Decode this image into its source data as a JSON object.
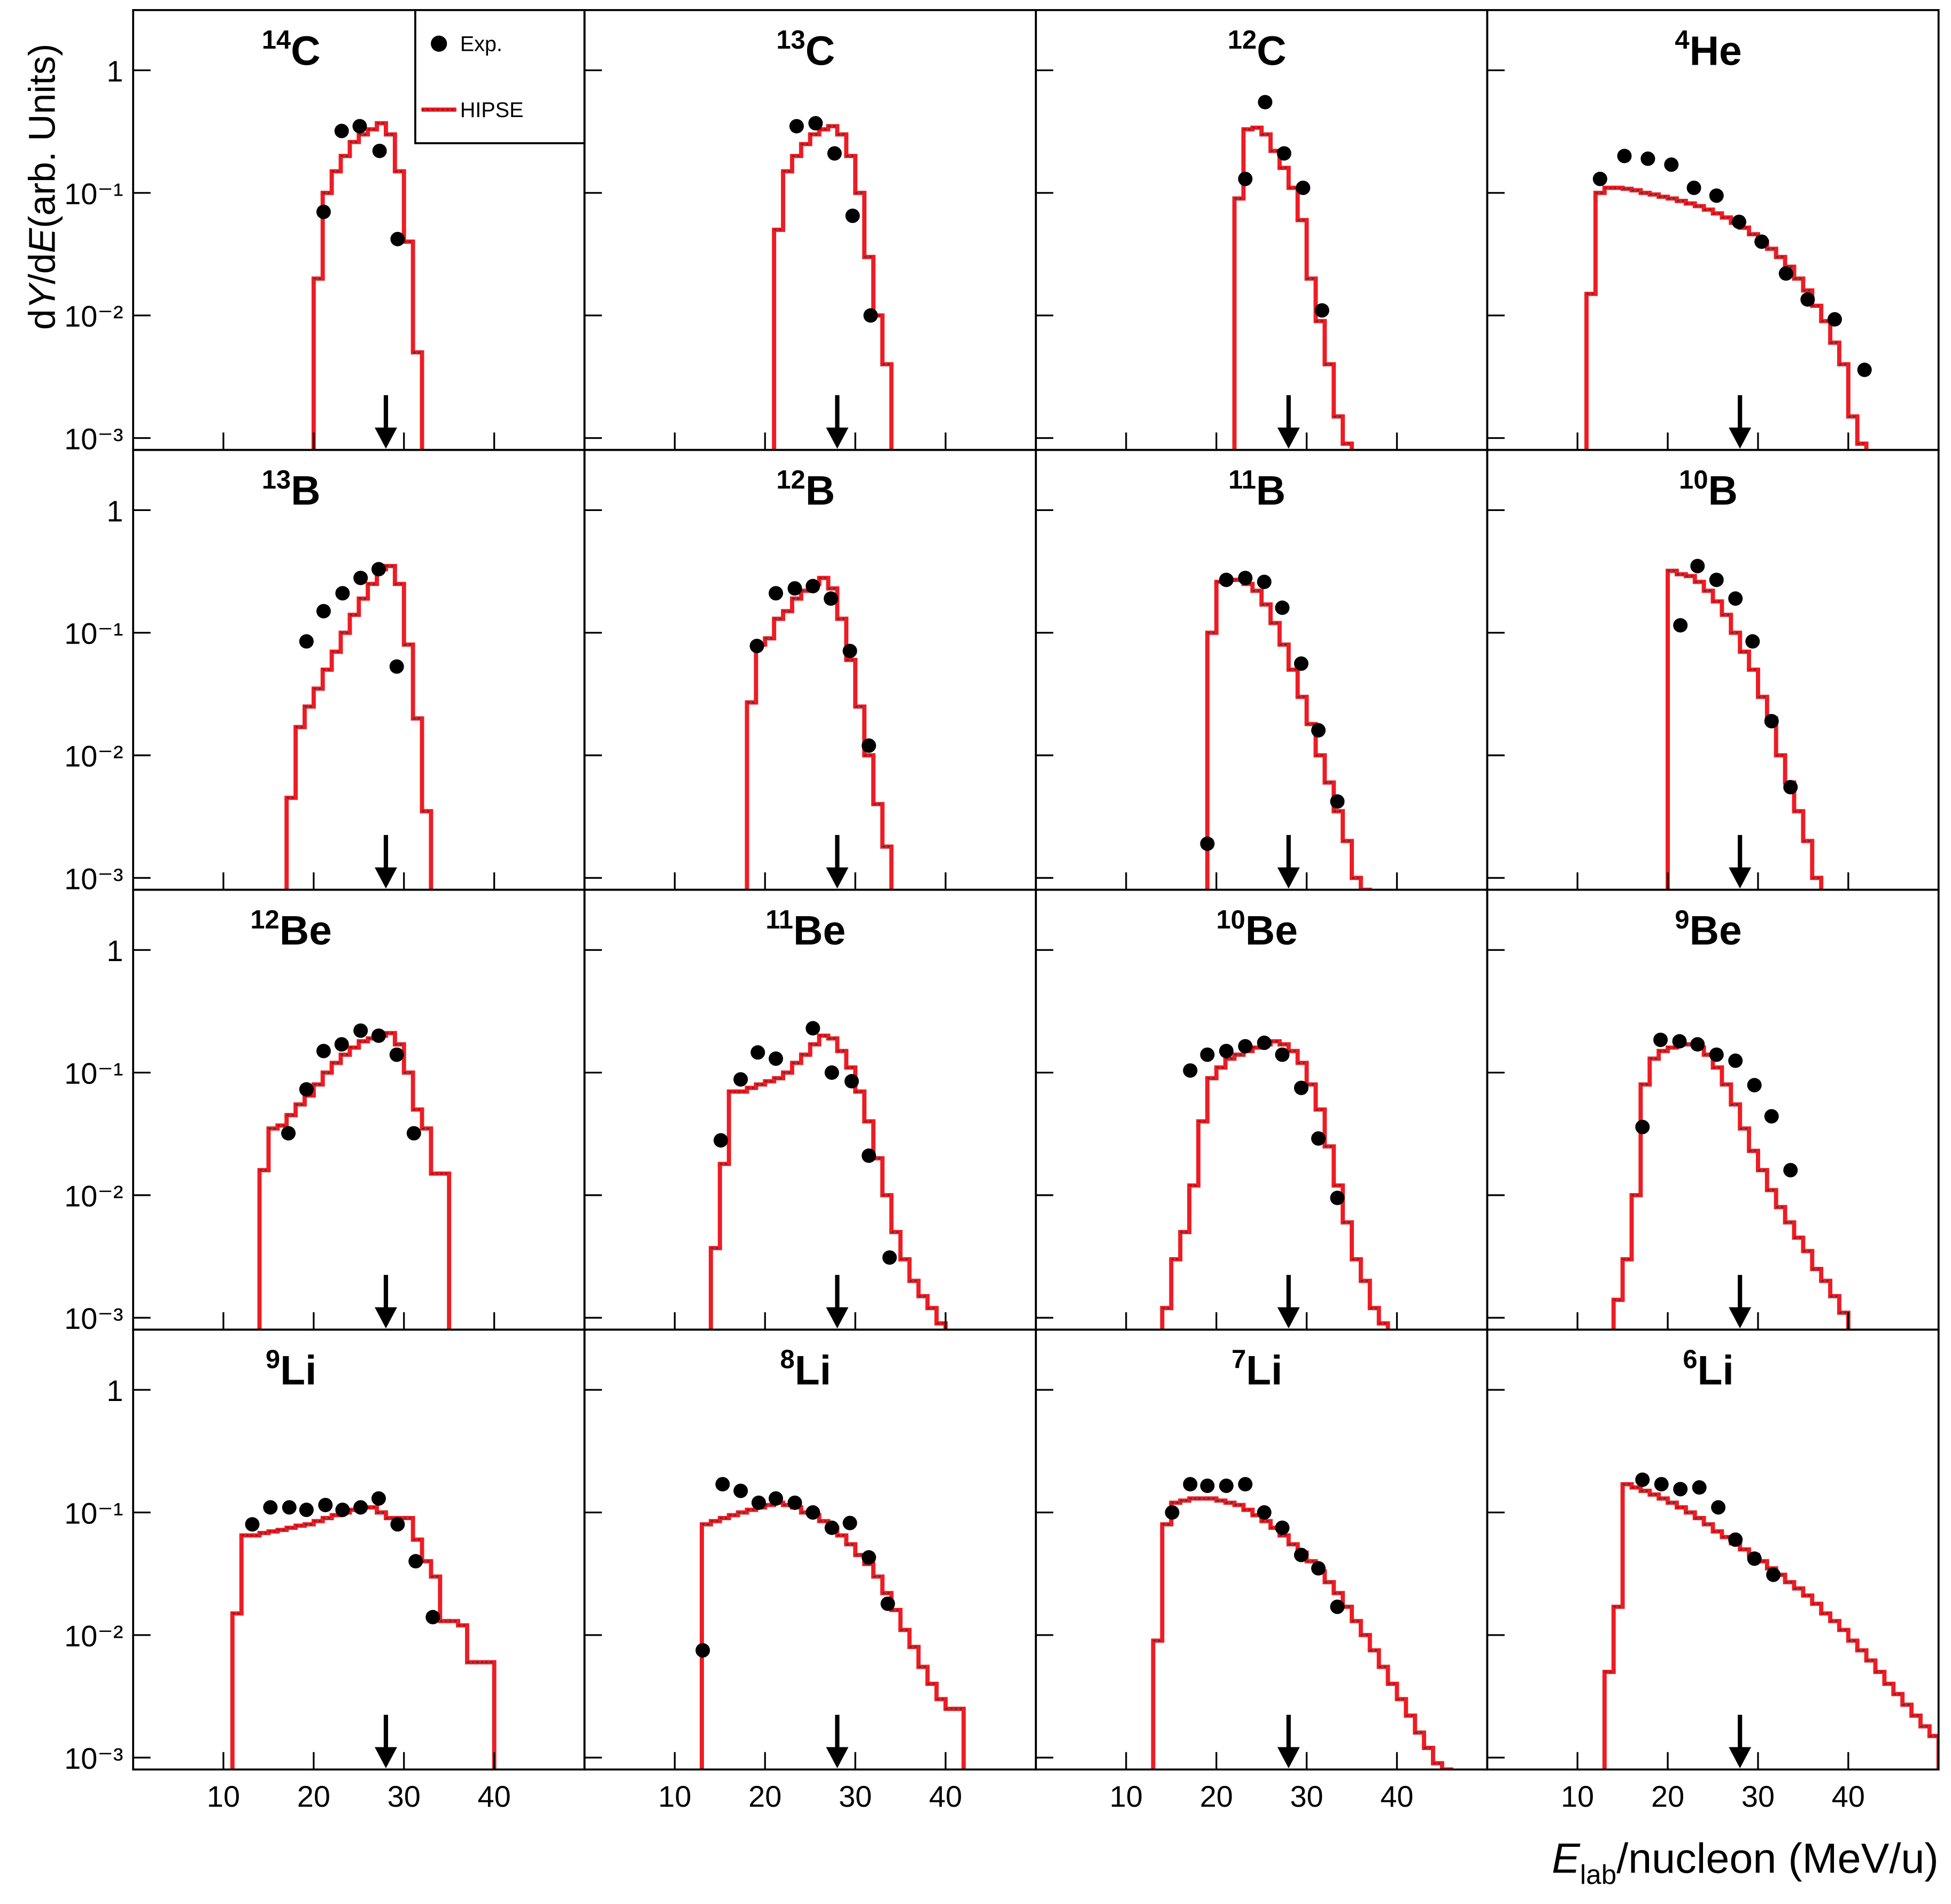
{
  "ylabel": {
    "d1": "d",
    "var1": "Y",
    "d2": "/d",
    "var2": "E",
    "rest": "(arb. Units)"
  },
  "xlabel": {
    "var": "E",
    "sub": "lab",
    "rest": "/nucleon (MeV/u)"
  },
  "axes": {
    "xlim": [
      0,
      50
    ],
    "ylim": [
      0.0008,
      3.1
    ],
    "log_y": true,
    "xticks": [
      10,
      20,
      30,
      40
    ],
    "yticks": [
      {
        "value": 0.001,
        "label": "10⁻³"
      },
      {
        "value": 0.01,
        "label": "10⁻²"
      },
      {
        "value": 0.1,
        "label": "10⁻¹"
      },
      1
    ]
  },
  "arrow_x": 28,
  "legend": {
    "corner": "upper right",
    "entries": [
      {
        "name": "Exp.",
        "kind": "points",
        "color": "#000000"
      },
      {
        "name": "HIPSE",
        "kind": "histogram",
        "color": "#ee1c24"
      }
    ]
  },
  "chart_data": [
    {
      "type": "histogram",
      "isotope": {
        "mass": "14",
        "symbol": "C"
      },
      "bins": [
        20,
        21,
        22,
        23,
        24,
        25,
        26,
        27,
        28,
        29,
        30,
        31,
        32
      ],
      "counts": [
        0.02,
        0.1,
        0.15,
        0.2,
        0.26,
        0.3,
        0.33,
        0.37,
        0.3,
        0.15,
        0.04,
        0.005
      ],
      "points": {
        "x": [
          21.1,
          23.1,
          25.1,
          27.3,
          29.3
        ],
        "y": [
          0.07,
          0.32,
          0.35,
          0.22,
          0.042
        ]
      }
    },
    {
      "type": "histogram",
      "isotope": {
        "mass": "13",
        "symbol": "C"
      },
      "bins": [
        21,
        22,
        23,
        24,
        25,
        26,
        27,
        28,
        29,
        30,
        31,
        32,
        33,
        34
      ],
      "counts": [
        0.05,
        0.15,
        0.2,
        0.25,
        0.3,
        0.33,
        0.35,
        0.3,
        0.2,
        0.1,
        0.03,
        0.01,
        0.004
      ],
      "points": {
        "x": [
          23.5,
          25.6,
          27.7,
          29.7,
          31.7
        ],
        "y": [
          0.35,
          0.37,
          0.21,
          0.065,
          0.01
        ]
      }
    },
    {
      "type": "histogram",
      "isotope": {
        "mass": "12",
        "symbol": "C"
      },
      "bins": [
        22,
        23,
        24,
        25,
        26,
        27,
        28,
        29,
        30,
        31,
        32,
        33,
        34,
        35
      ],
      "counts": [
        0.09,
        0.33,
        0.34,
        0.3,
        0.22,
        0.16,
        0.11,
        0.06,
        0.02,
        0.009,
        0.004,
        0.0015,
        0.0009
      ],
      "points": {
        "x": [
          23.2,
          25.4,
          27.5,
          29.6,
          31.7
        ],
        "y": [
          0.13,
          0.55,
          0.21,
          0.11,
          0.011
        ]
      }
    },
    {
      "type": "histogram",
      "isotope": {
        "mass": "4",
        "symbol": "He"
      },
      "bins": [
        11,
        12,
        13,
        14,
        15,
        16,
        17,
        18,
        19,
        20,
        21,
        22,
        23,
        24,
        25,
        26,
        27,
        28,
        29,
        30,
        31,
        32,
        33,
        34,
        35,
        36,
        37,
        38,
        39,
        40,
        41,
        42
      ],
      "counts": [
        0.015,
        0.1,
        0.11,
        0.11,
        0.108,
        0.105,
        0.1,
        0.097,
        0.093,
        0.09,
        0.086,
        0.082,
        0.078,
        0.073,
        0.068,
        0.063,
        0.057,
        0.052,
        0.046,
        0.04,
        0.035,
        0.03,
        0.025,
        0.02,
        0.016,
        0.012,
        0.009,
        0.006,
        0.004,
        0.0015,
        0.0009
      ],
      "points": {
        "x": [
          12.5,
          15.2,
          17.8,
          20.4,
          22.9,
          25.4,
          27.9,
          30.4,
          33.1,
          35.5,
          38.5,
          41.8
        ],
        "y": [
          0.13,
          0.2,
          0.19,
          0.17,
          0.11,
          0.095,
          0.058,
          0.04,
          0.022,
          0.0135,
          0.0093,
          0.0036
        ]
      }
    },
    {
      "type": "histogram",
      "isotope": {
        "mass": "13",
        "symbol": "B"
      },
      "bins": [
        17,
        18,
        19,
        20,
        21,
        22,
        23,
        24,
        25,
        26,
        27,
        28,
        29,
        30,
        31,
        32,
        33
      ],
      "counts": [
        0.0045,
        0.017,
        0.025,
        0.035,
        0.05,
        0.07,
        0.1,
        0.14,
        0.19,
        0.25,
        0.33,
        0.35,
        0.25,
        0.08,
        0.02,
        0.0035
      ],
      "points": {
        "x": [
          19.2,
          21.1,
          23.2,
          25.2,
          27.2,
          29.2
        ],
        "y": [
          0.085,
          0.15,
          0.21,
          0.28,
          0.33,
          0.053
        ]
      }
    },
    {
      "type": "histogram",
      "isotope": {
        "mass": "12",
        "symbol": "B"
      },
      "bins": [
        18,
        19,
        20,
        21,
        22,
        23,
        24,
        25,
        26,
        27,
        28,
        29,
        30,
        31,
        32,
        33,
        34
      ],
      "counts": [
        0.027,
        0.08,
        0.09,
        0.13,
        0.15,
        0.19,
        0.22,
        0.25,
        0.28,
        0.23,
        0.13,
        0.06,
        0.025,
        0.01,
        0.004,
        0.0018
      ],
      "points": {
        "x": [
          19.1,
          21.2,
          23.3,
          25.3,
          27.3,
          29.4,
          31.5
        ],
        "y": [
          0.078,
          0.21,
          0.23,
          0.24,
          0.19,
          0.071,
          0.012
        ]
      }
    },
    {
      "type": "histogram",
      "isotope": {
        "mass": "11",
        "symbol": "B"
      },
      "bins": [
        19,
        20,
        21,
        22,
        23,
        24,
        25,
        26,
        27,
        28,
        29,
        30,
        31,
        32,
        33,
        34,
        35,
        36,
        37
      ],
      "counts": [
        0.1,
        0.26,
        0.27,
        0.27,
        0.25,
        0.22,
        0.17,
        0.12,
        0.08,
        0.05,
        0.03,
        0.018,
        0.01,
        0.006,
        0.0035,
        0.002,
        0.001,
        0.0008
      ],
      "points": {
        "x": [
          19,
          21.1,
          23.2,
          25.3,
          27.3,
          29.4,
          31.3,
          33.4
        ],
        "y": [
          0.0019,
          0.27,
          0.28,
          0.26,
          0.16,
          0.056,
          0.016,
          0.0042
        ]
      }
    },
    {
      "type": "histogram",
      "isotope": {
        "mass": "10",
        "symbol": "B"
      },
      "bins": [
        20,
        21,
        22,
        23,
        24,
        25,
        26,
        27,
        28,
        29,
        30,
        31,
        32,
        33,
        34,
        35,
        36,
        37
      ],
      "counts": [
        0.32,
        0.3,
        0.29,
        0.26,
        0.22,
        0.18,
        0.14,
        0.1,
        0.07,
        0.05,
        0.03,
        0.02,
        0.01,
        0.006,
        0.0035,
        0.002,
        0.001
      ],
      "points": {
        "x": [
          21.4,
          23.3,
          25.4,
          27.5,
          29.4,
          31.5,
          33.6
        ],
        "y": [
          0.115,
          0.35,
          0.27,
          0.19,
          0.085,
          0.019,
          0.0055
        ]
      }
    },
    {
      "type": "histogram",
      "isotope": {
        "mass": "12",
        "symbol": "Be"
      },
      "bins": [
        14,
        15,
        16,
        17,
        18,
        19,
        20,
        21,
        22,
        23,
        24,
        25,
        26,
        27,
        28,
        29,
        30,
        31,
        32,
        33,
        34,
        35
      ],
      "counts": [
        0.016,
        0.035,
        0.037,
        0.045,
        0.055,
        0.065,
        0.08,
        0.1,
        0.12,
        0.14,
        0.16,
        0.18,
        0.19,
        0.2,
        0.21,
        0.17,
        0.1,
        0.05,
        0.035,
        0.015,
        0.015
      ],
      "points": {
        "x": [
          17.2,
          19.2,
          21.1,
          23.1,
          25.2,
          27.2,
          29.2,
          31.1
        ],
        "y": [
          0.032,
          0.073,
          0.15,
          0.17,
          0.22,
          0.2,
          0.14,
          0.032
        ]
      }
    },
    {
      "type": "histogram",
      "isotope": {
        "mass": "11",
        "symbol": "Be"
      },
      "bins": [
        14,
        15,
        16,
        17,
        18,
        19,
        20,
        21,
        22,
        23,
        24,
        25,
        26,
        27,
        28,
        29,
        30,
        31,
        32,
        33,
        34,
        35,
        36,
        37,
        38,
        39,
        40
      ],
      "counts": [
        0.0037,
        0.018,
        0.07,
        0.07,
        0.075,
        0.08,
        0.085,
        0.09,
        0.1,
        0.12,
        0.14,
        0.17,
        0.2,
        0.19,
        0.15,
        0.11,
        0.07,
        0.04,
        0.02,
        0.01,
        0.005,
        0.003,
        0.002,
        0.0015,
        0.0012,
        0.0009
      ],
      "points": {
        "x": [
          15.1,
          17.3,
          19.2,
          21.2,
          25.3,
          27.4,
          29.6,
          31.5,
          33.8
        ],
        "y": [
          0.028,
          0.088,
          0.146,
          0.13,
          0.23,
          0.1,
          0.085,
          0.021,
          0.0031
        ]
      }
    },
    {
      "type": "histogram",
      "isotope": {
        "mass": "10",
        "symbol": "Be"
      },
      "bins": [
        14,
        15,
        16,
        17,
        18,
        19,
        20,
        21,
        22,
        23,
        24,
        25,
        26,
        27,
        28,
        29,
        30,
        31,
        32,
        33,
        34,
        35,
        36,
        37,
        38,
        39
      ],
      "counts": [
        0.0012,
        0.003,
        0.005,
        0.012,
        0.04,
        0.09,
        0.11,
        0.13,
        0.14,
        0.15,
        0.16,
        0.17,
        0.18,
        0.17,
        0.15,
        0.12,
        0.08,
        0.05,
        0.025,
        0.012,
        0.006,
        0.003,
        0.002,
        0.0012,
        0.0009
      ],
      "points": {
        "x": [
          17.1,
          19,
          21.1,
          23.2,
          25.3,
          27.3,
          29.4,
          31.3,
          33.4
        ],
        "y": [
          0.104,
          0.14,
          0.15,
          0.164,
          0.175,
          0.14,
          0.075,
          0.029,
          0.0095
        ]
      }
    },
    {
      "type": "histogram",
      "isotope": {
        "mass": "9",
        "symbol": "Be"
      },
      "bins": [
        14,
        15,
        16,
        17,
        18,
        19,
        20,
        21,
        22,
        23,
        24,
        25,
        26,
        27,
        28,
        29,
        30,
        31,
        32,
        33,
        34,
        35,
        36,
        37,
        38,
        39,
        40
      ],
      "counts": [
        0.0014,
        0.003,
        0.01,
        0.08,
        0.13,
        0.15,
        0.16,
        0.17,
        0.17,
        0.16,
        0.14,
        0.11,
        0.08,
        0.055,
        0.035,
        0.023,
        0.016,
        0.011,
        0.008,
        0.006,
        0.0045,
        0.0035,
        0.0025,
        0.002,
        0.0015,
        0.0011
      ],
      "points": {
        "x": [
          17.2,
          19.2,
          21.3,
          23.3,
          25.4,
          27.5,
          29.6,
          31.5,
          33.6
        ],
        "y": [
          0.036,
          0.185,
          0.18,
          0.17,
          0.14,
          0.125,
          0.079,
          0.044,
          0.016
        ]
      }
    },
    {
      "type": "histogram",
      "isotope": {
        "mass": "9",
        "symbol": "Li"
      },
      "bins": [
        11,
        12,
        13,
        14,
        15,
        16,
        17,
        18,
        19,
        20,
        21,
        22,
        23,
        24,
        25,
        26,
        27,
        28,
        29,
        30,
        31,
        32,
        33,
        34,
        35,
        36,
        37,
        38,
        39,
        40
      ],
      "counts": [
        0.015,
        0.065,
        0.065,
        0.068,
        0.07,
        0.072,
        0.075,
        0.078,
        0.08,
        0.085,
        0.09,
        0.095,
        0.1,
        0.105,
        0.11,
        0.11,
        0.1,
        0.09,
        0.09,
        0.09,
        0.06,
        0.04,
        0.03,
        0.013,
        0.013,
        0.012,
        0.006,
        0.006,
        0.006
      ],
      "points": {
        "x": [
          13.2,
          15.2,
          17.3,
          19.2,
          21.3,
          23.2,
          25.2,
          27.2,
          29.3,
          31.3,
          33.2
        ],
        "y": [
          0.08,
          0.11,
          0.11,
          0.105,
          0.115,
          0.105,
          0.11,
          0.13,
          0.08,
          0.04,
          0.014
        ]
      }
    },
    {
      "type": "histogram",
      "isotope": {
        "mass": "8",
        "symbol": "Li"
      },
      "bins": [
        13,
        14,
        15,
        16,
        17,
        18,
        19,
        20,
        21,
        22,
        23,
        24,
        25,
        26,
        27,
        28,
        29,
        30,
        31,
        32,
        33,
        34,
        35,
        36,
        37,
        38,
        39,
        40,
        41,
        42
      ],
      "counts": [
        0.08,
        0.085,
        0.09,
        0.095,
        0.1,
        0.105,
        0.11,
        0.115,
        0.12,
        0.115,
        0.11,
        0.1,
        0.095,
        0.085,
        0.075,
        0.065,
        0.055,
        0.045,
        0.038,
        0.03,
        0.022,
        0.016,
        0.011,
        0.008,
        0.0055,
        0.004,
        0.003,
        0.0025,
        0.0025
      ],
      "points": {
        "x": [
          13.1,
          15.3,
          17.3,
          19.3,
          21.2,
          23.3,
          25.3,
          27.4,
          29.4,
          31.5,
          33.6
        ],
        "y": [
          0.0075,
          0.17,
          0.15,
          0.12,
          0.13,
          0.12,
          0.1,
          0.075,
          0.082,
          0.043,
          0.018
        ]
      }
    },
    {
      "type": "histogram",
      "isotope": {
        "mass": "7",
        "symbol": "Li"
      },
      "bins": [
        13,
        14,
        15,
        16,
        17,
        18,
        19,
        20,
        21,
        22,
        23,
        24,
        25,
        26,
        27,
        28,
        29,
        30,
        31,
        32,
        33,
        34,
        35,
        36,
        37,
        38,
        39,
        40,
        41,
        42,
        43,
        44,
        45,
        46
      ],
      "counts": [
        0.009,
        0.08,
        0.12,
        0.125,
        0.13,
        0.13,
        0.13,
        0.125,
        0.12,
        0.115,
        0.105,
        0.095,
        0.085,
        0.075,
        0.065,
        0.055,
        0.047,
        0.04,
        0.033,
        0.027,
        0.022,
        0.017,
        0.013,
        0.01,
        0.0075,
        0.0055,
        0.004,
        0.003,
        0.0022,
        0.0016,
        0.0012,
        0.0009,
        0.0008
      ],
      "points": {
        "x": [
          15.1,
          17.1,
          19,
          21.1,
          23.2,
          25.3,
          27.3,
          29.4,
          31.3,
          33.4
        ],
        "y": [
          0.1,
          0.17,
          0.165,
          0.165,
          0.17,
          0.1,
          0.075,
          0.045,
          0.035,
          0.017
        ]
      }
    },
    {
      "type": "histogram",
      "isotope": {
        "mass": "6",
        "symbol": "Li"
      },
      "bins": [
        13,
        14,
        15,
        16,
        17,
        18,
        19,
        20,
        21,
        22,
        23,
        24,
        25,
        26,
        27,
        28,
        29,
        30,
        31,
        32,
        33,
        34,
        35,
        36,
        37,
        38,
        39,
        40,
        41,
        42,
        43,
        44,
        45,
        46,
        47,
        48,
        49,
        50
      ],
      "counts": [
        0.005,
        0.017,
        0.17,
        0.16,
        0.15,
        0.14,
        0.13,
        0.12,
        0.11,
        0.1,
        0.09,
        0.08,
        0.07,
        0.063,
        0.056,
        0.05,
        0.045,
        0.04,
        0.035,
        0.031,
        0.027,
        0.024,
        0.021,
        0.018,
        0.015,
        0.013,
        0.011,
        0.009,
        0.0075,
        0.0062,
        0.005,
        0.004,
        0.0033,
        0.0027,
        0.0022,
        0.0018,
        0.0015
      ],
      "points": {
        "x": [
          17.2,
          19.3,
          21.4,
          23.5,
          25.6,
          27.5,
          29.6,
          31.7
        ],
        "y": [
          0.185,
          0.17,
          0.155,
          0.16,
          0.11,
          0.06,
          0.042,
          0.031
        ]
      }
    }
  ]
}
